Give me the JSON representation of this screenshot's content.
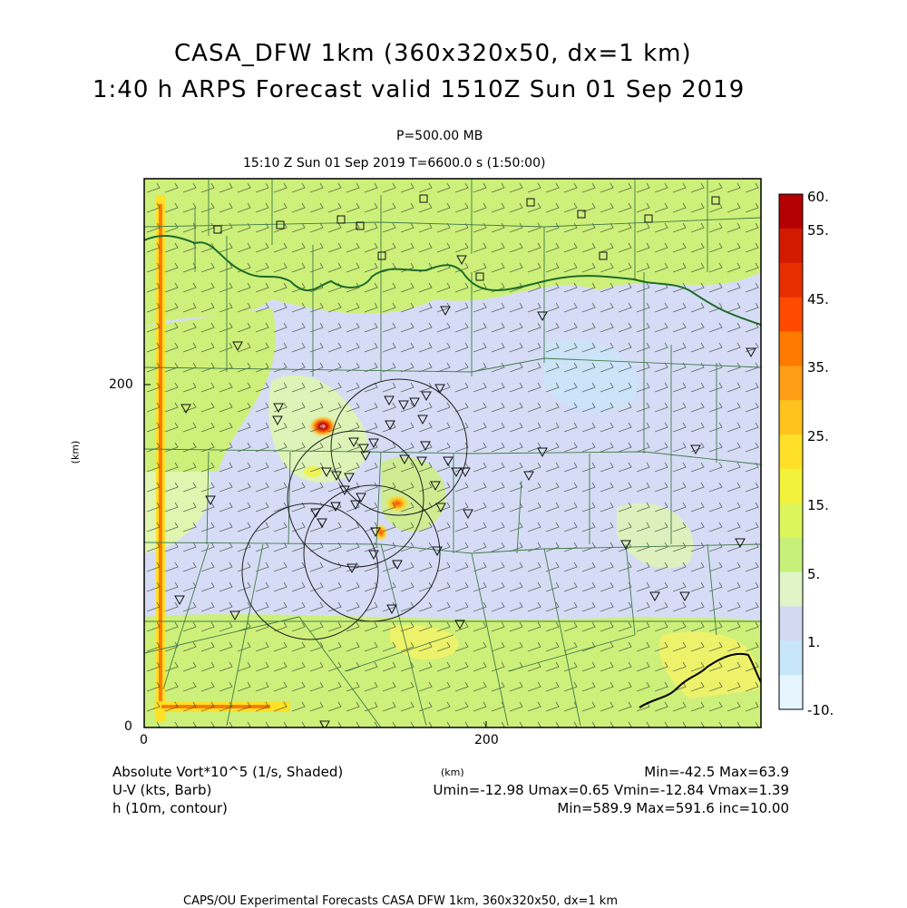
{
  "title": {
    "line1": "CASA_DFW 1km (360x320x50, dx=1 km)",
    "line2": "1:40 h ARPS Forecast valid 1510Z Sun 01 Sep 2019"
  },
  "level": "P=500.00 MB",
  "time_line": "15:10 Z Sun 01 Sep 2019    T=6600.0 s (1:50:00)",
  "axes": {
    "y_unit": "(km)",
    "x_unit": "(km)",
    "y_ticks": [
      "200",
      "0"
    ],
    "x_ticks": [
      "0",
      "200"
    ]
  },
  "colorbar": {
    "labels": [
      "60.",
      "55.",
      "45.",
      "35.",
      "25.",
      "15.",
      "5.",
      "1.",
      "-10."
    ],
    "colors": [
      "#b40000",
      "#d21a00",
      "#e62e00",
      "#ff4a00",
      "#ff7a00",
      "#ff9e14",
      "#ffc21e",
      "#ffe028",
      "#f2f23c",
      "#dcf55a",
      "#c6f07a",
      "#dff5c8",
      "#d4d9f2",
      "#c8e6fa",
      "#e6f5ff"
    ]
  },
  "footer": {
    "left": [
      "Absolute Vort*10^5 (1/s, Shaded)",
      "U-V (kts, Barb)",
      "h (10m, contour)"
    ],
    "center_unit": "(km)",
    "right": [
      "Min=-42.5 Max=63.9",
      "Umin=-12.98 Umax=0.65 Vmin=-12.84 Vmax=1.39",
      "Min=589.9 Max=591.6 inc=10.00"
    ],
    "credit": "CAPS/OU Experimental Forecasts  CASA DFW 1km, 360x320x50, dx=1 km"
  },
  "map_colors": {
    "green": "#cdf07a",
    "light_green": "#dff5b0",
    "lavender": "#d6dcf5",
    "yellow": "#eef26a",
    "orange": "#ff9e14",
    "red": "#e62e00",
    "county_lines": "#3f7a4a",
    "state_line": "#1f6b2a",
    "coast_line": "#000000"
  },
  "markers": {
    "radar_icon": "triangle-down-icon",
    "station_icon": "square-icon"
  }
}
